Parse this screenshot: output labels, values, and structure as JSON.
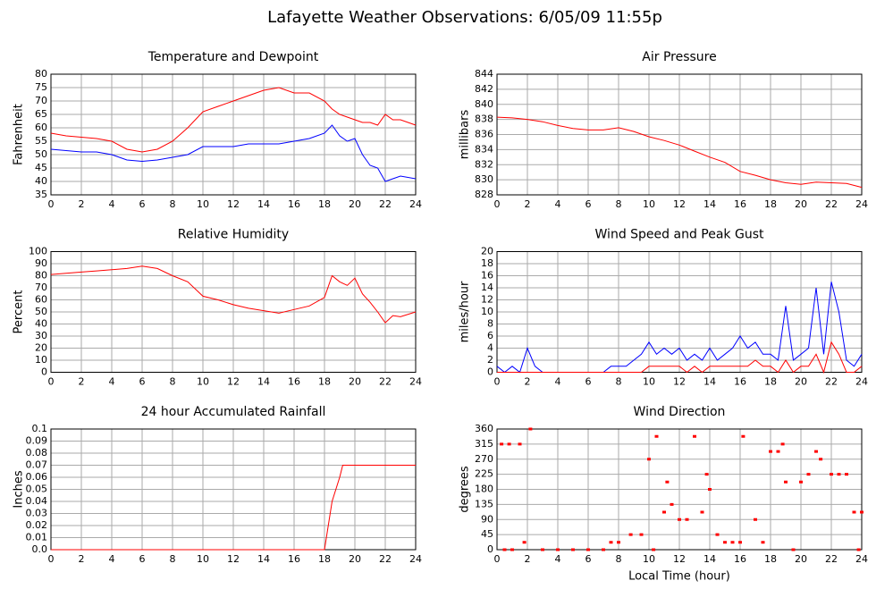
{
  "title": "Lafayette Weather Observations: 6/05/09 11:55p",
  "chart_data": [
    {
      "type": "line",
      "title": "Temperature and Dewpoint",
      "ylabel": "Fahrenheit",
      "x": [
        0,
        1,
        2,
        3,
        4,
        5,
        6,
        7,
        8,
        9,
        10,
        11,
        12,
        13,
        14,
        15,
        16,
        17,
        18,
        18.5,
        19,
        19.5,
        20,
        20.5,
        21,
        21.5,
        22,
        22.5,
        23,
        24
      ],
      "series": [
        {
          "color": "#ff0000",
          "values": [
            58,
            57,
            56.5,
            56,
            55,
            52,
            51,
            52,
            55,
            60,
            66,
            68,
            70,
            72,
            74,
            75,
            73,
            73,
            70,
            67,
            65,
            64,
            63,
            62,
            62,
            61,
            65,
            63,
            63,
            61
          ]
        },
        {
          "color": "#0000ff",
          "values": [
            52,
            51.5,
            51,
            51,
            50,
            48,
            47.5,
            48,
            49,
            50,
            53,
            53,
            53,
            54,
            54,
            54,
            55,
            56,
            58,
            61,
            57,
            55,
            56,
            50,
            46,
            45,
            40,
            41,
            42,
            41
          ]
        }
      ],
      "xlim": [
        0,
        24
      ],
      "xticks": [
        0,
        2,
        4,
        6,
        8,
        10,
        12,
        14,
        16,
        18,
        20,
        22,
        24
      ],
      "ylim": [
        35,
        80
      ],
      "yticks": [
        35,
        40,
        45,
        50,
        55,
        60,
        65,
        70,
        75,
        80
      ],
      "grid": true
    },
    {
      "type": "line",
      "title": "Air Pressure",
      "ylabel": "millibars",
      "x": [
        0,
        1,
        2,
        3,
        4,
        5,
        6,
        7,
        8,
        9,
        10,
        11,
        12,
        13,
        14,
        15,
        16,
        17,
        18,
        19,
        20,
        21,
        22,
        23,
        24
      ],
      "series": [
        {
          "color": "#ff0000",
          "values": [
            838.3,
            838.2,
            838.0,
            837.7,
            837.2,
            836.8,
            836.6,
            836.6,
            836.9,
            836.4,
            835.7,
            835.2,
            834.6,
            833.8,
            833.0,
            832.3,
            831.1,
            830.6,
            830.0,
            829.6,
            829.4,
            829.7,
            829.6,
            829.5,
            829.0
          ]
        }
      ],
      "xlim": [
        0,
        24
      ],
      "xticks": [
        0,
        2,
        4,
        6,
        8,
        10,
        12,
        14,
        16,
        18,
        20,
        22,
        24
      ],
      "ylim": [
        828,
        844
      ],
      "yticks": [
        828,
        830,
        832,
        834,
        836,
        838,
        840,
        842,
        844
      ],
      "grid": true
    },
    {
      "type": "line",
      "title": "Relative Humidity",
      "ylabel": "Percent",
      "x": [
        0,
        1,
        2,
        3,
        4,
        5,
        6,
        7,
        8,
        9,
        10,
        11,
        12,
        13,
        14,
        15,
        16,
        17,
        18,
        18.5,
        19,
        19.5,
        20,
        20.5,
        21,
        21.5,
        22,
        22.5,
        23,
        24
      ],
      "series": [
        {
          "color": "#ff0000",
          "values": [
            81,
            82,
            83,
            84,
            85,
            86,
            88,
            86,
            80,
            75,
            63,
            60,
            56,
            53,
            51,
            49,
            52,
            55,
            62,
            80,
            75,
            72,
            78,
            65,
            58,
            50,
            41,
            47,
            46,
            50
          ]
        }
      ],
      "xlim": [
        0,
        24
      ],
      "xticks": [
        0,
        2,
        4,
        6,
        8,
        10,
        12,
        14,
        16,
        18,
        20,
        22,
        24
      ],
      "ylim": [
        0,
        100
      ],
      "yticks": [
        0,
        10,
        20,
        30,
        40,
        50,
        60,
        70,
        80,
        90,
        100
      ],
      "grid": true
    },
    {
      "type": "line",
      "title": "Wind Speed and Peak Gust",
      "ylabel": "miles/hour",
      "x": [
        0,
        0.5,
        1,
        1.5,
        2,
        2.5,
        3,
        3.5,
        4,
        4.5,
        5,
        5.5,
        6,
        6.5,
        7,
        7.5,
        8,
        8.5,
        9,
        9.5,
        10,
        10.5,
        11,
        11.5,
        12,
        12.5,
        13,
        13.5,
        14,
        14.5,
        15,
        15.5,
        16,
        16.5,
        17,
        17.5,
        18,
        18.5,
        19,
        19.5,
        20,
        20.5,
        21,
        21.5,
        22,
        22.5,
        23,
        23.5,
        24
      ],
      "series": [
        {
          "color": "#0000ff",
          "values": [
            1,
            0,
            1,
            0,
            4,
            1,
            0,
            0,
            0,
            0,
            0,
            0,
            0,
            0,
            0,
            1,
            1,
            1,
            2,
            3,
            5,
            3,
            4,
            3,
            4,
            2,
            3,
            2,
            4,
            2,
            3,
            4,
            6,
            4,
            5,
            3,
            3,
            2,
            11,
            2,
            3,
            4,
            14,
            3,
            15,
            10,
            2,
            1,
            3
          ]
        },
        {
          "color": "#ff0000",
          "values": [
            0,
            0,
            0,
            0,
            0,
            0,
            0,
            0,
            0,
            0,
            0,
            0,
            0,
            0,
            0,
            0,
            0,
            0,
            0,
            0,
            1,
            1,
            1,
            1,
            1,
            0,
            1,
            0,
            1,
            1,
            1,
            1,
            1,
            1,
            2,
            1,
            1,
            0,
            2,
            0,
            1,
            1,
            3,
            0,
            5,
            3,
            0,
            0,
            1
          ]
        }
      ],
      "xlim": [
        0,
        24
      ],
      "xticks": [
        0,
        2,
        4,
        6,
        8,
        10,
        12,
        14,
        16,
        18,
        20,
        22,
        24
      ],
      "ylim": [
        0,
        20
      ],
      "yticks": [
        0,
        2,
        4,
        6,
        8,
        10,
        12,
        14,
        16,
        18,
        20
      ],
      "grid": true
    },
    {
      "type": "line",
      "title": "24 hour Accumulated Rainfall",
      "ylabel": "Inches",
      "x": [
        0,
        18,
        18.5,
        19,
        19.2,
        24
      ],
      "series": [
        {
          "color": "#ff0000",
          "values": [
            0,
            0,
            0.04,
            0.06,
            0.07,
            0.07
          ]
        }
      ],
      "xlim": [
        0,
        24
      ],
      "xticks": [
        0,
        2,
        4,
        6,
        8,
        10,
        12,
        14,
        16,
        18,
        20,
        22,
        24
      ],
      "ylim": [
        0,
        0.1
      ],
      "yticks": [
        {
          "value": 0,
          "label": "0.0"
        },
        0.01,
        0.02,
        0.03,
        0.04,
        0.05,
        0.06,
        0.07,
        0.08,
        0.09,
        0.1
      ],
      "grid": true
    },
    {
      "type": "scatter",
      "title": "Wind Direction",
      "ylabel": "degrees",
      "xlabel": "Local Time (hour)",
      "x": [
        0.3,
        0.8,
        1.5,
        2.2,
        0.5,
        1,
        1.8,
        3,
        4,
        5,
        6,
        7,
        7.5,
        8,
        8.8,
        9.5,
        10,
        10.3,
        10.5,
        11,
        11.2,
        11.5,
        12,
        12.5,
        13,
        13.5,
        13.8,
        14,
        14.5,
        15,
        15.5,
        16,
        16.2,
        17,
        17.5,
        18,
        18.5,
        18.8,
        19,
        19.5,
        20,
        20.5,
        21,
        21.3,
        22,
        22.5,
        23,
        23.5,
        24,
        23.8
      ],
      "series": [
        {
          "color": "#ff0000",
          "values": [
            315,
            315,
            315,
            360,
            0,
            0,
            22,
            0,
            0,
            0,
            0,
            0,
            22,
            22,
            45,
            45,
            270,
            0,
            338,
            112,
            202,
            135,
            90,
            90,
            338,
            112,
            225,
            180,
            45,
            22,
            22,
            22,
            338,
            90,
            22,
            293,
            293,
            315,
            202,
            0,
            202,
            225,
            293,
            270,
            225,
            225,
            225,
            112,
            112,
            0
          ]
        }
      ],
      "xlim": [
        0,
        24
      ],
      "xticks": [
        0,
        2,
        4,
        6,
        8,
        10,
        12,
        14,
        16,
        18,
        20,
        22,
        24
      ],
      "ylim": [
        0,
        360
      ],
      "yticks": [
        0,
        45,
        90,
        135,
        180,
        225,
        270,
        315,
        360
      ],
      "grid": true
    }
  ]
}
